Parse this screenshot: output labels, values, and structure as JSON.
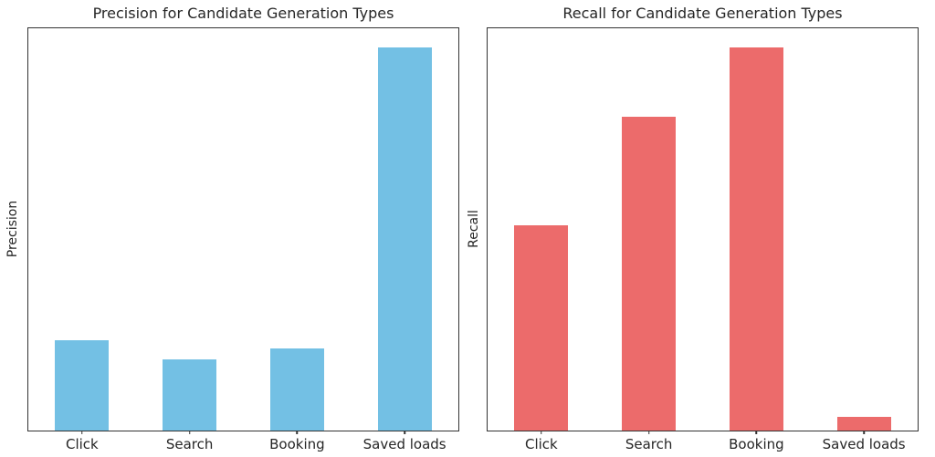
{
  "figure": {
    "background_color": "#ffffff",
    "spine_color": "#333333",
    "text_color": "#262626"
  },
  "chart_data": [
    {
      "type": "bar",
      "title": "Precision for Candidate Generation Types",
      "xlabel": "",
      "ylabel": "Precision",
      "categories": [
        "Click",
        "Search",
        "Booking",
        "Saved loads"
      ],
      "values": [
        0.235,
        0.185,
        0.215,
        1.0
      ],
      "ylim": [
        0,
        1.05
      ],
      "bar_color": "#73c0e4",
      "bar_width_frac": 0.125,
      "grid": false,
      "legend": "none",
      "y_tick_labels": []
    },
    {
      "type": "bar",
      "title": "Recall for Candidate Generation Types",
      "xlabel": "",
      "ylabel": "Recall",
      "categories": [
        "Click",
        "Search",
        "Booking",
        "Saved loads"
      ],
      "values": [
        0.535,
        0.82,
        1.0,
        0.035
      ],
      "ylim": [
        0,
        1.05
      ],
      "bar_color": "#ec6b6b",
      "bar_width_frac": 0.125,
      "grid": false,
      "legend": "none",
      "y_tick_labels": []
    }
  ]
}
